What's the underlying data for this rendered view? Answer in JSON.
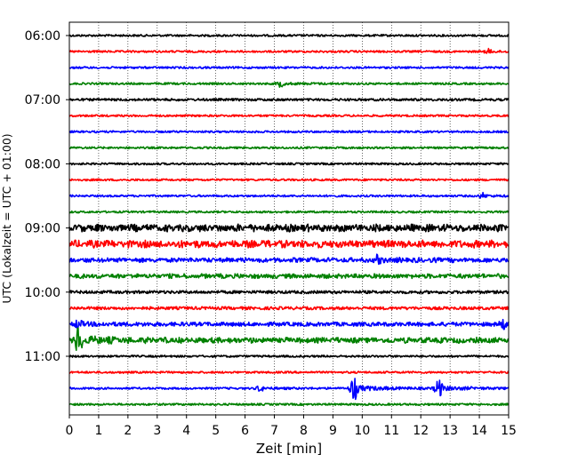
{
  "chart_data": {
    "type": "line",
    "chart_kind": "helicorder",
    "xlabel": "Zeit  [min]",
    "ylabel": "UTC (Lokalzeit = UTC + 01:00)",
    "xlim": [
      0,
      15
    ],
    "x_ticks": [
      0,
      1,
      2,
      3,
      4,
      5,
      6,
      7,
      8,
      9,
      10,
      11,
      12,
      13,
      14,
      15
    ],
    "y_tick_labels": [
      "06:00",
      "07:00",
      "08:00",
      "09:00",
      "10:00",
      "11:00"
    ],
    "x_grid": "dotted vertical at every minute",
    "trace_colors": [
      "#000000",
      "#ff0000",
      "#0000ff",
      "#008000"
    ],
    "traces": [
      {
        "start": "06:00",
        "color": "#000000",
        "amplitude": 1,
        "events": []
      },
      {
        "start": "06:15",
        "color": "#ff0000",
        "amplitude": 1,
        "events": [
          {
            "t": 14.3,
            "amp": 2
          }
        ]
      },
      {
        "start": "06:30",
        "color": "#0000ff",
        "amplitude": 1,
        "events": []
      },
      {
        "start": "06:45",
        "color": "#008000",
        "amplitude": 1,
        "events": [
          {
            "t": 7.2,
            "amp": 3
          }
        ]
      },
      {
        "start": "07:00",
        "color": "#000000",
        "amplitude": 1.2,
        "events": []
      },
      {
        "start": "07:15",
        "color": "#ff0000",
        "amplitude": 1,
        "events": []
      },
      {
        "start": "07:30",
        "color": "#0000ff",
        "amplitude": 1,
        "events": []
      },
      {
        "start": "07:45",
        "color": "#008000",
        "amplitude": 1,
        "events": []
      },
      {
        "start": "08:00",
        "color": "#000000",
        "amplitude": 1,
        "events": []
      },
      {
        "start": "08:15",
        "color": "#ff0000",
        "amplitude": 1,
        "events": []
      },
      {
        "start": "08:30",
        "color": "#0000ff",
        "amplitude": 1,
        "events": [
          {
            "t": 14.1,
            "amp": 2.5
          }
        ]
      },
      {
        "start": "08:45",
        "color": "#008000",
        "amplitude": 1,
        "events": []
      },
      {
        "start": "09:00",
        "color": "#000000",
        "amplitude": 4,
        "events": []
      },
      {
        "start": "09:15",
        "color": "#ff0000",
        "amplitude": 4,
        "events": []
      },
      {
        "start": "09:30",
        "color": "#0000ff",
        "amplitude": 2.5,
        "events": [
          {
            "t": 10.5,
            "amp": 4
          }
        ]
      },
      {
        "start": "09:45",
        "color": "#008000",
        "amplitude": 2.5,
        "events": []
      },
      {
        "start": "10:00",
        "color": "#000000",
        "amplitude": 1.5,
        "events": []
      },
      {
        "start": "10:15",
        "color": "#ff0000",
        "amplitude": 1.5,
        "events": []
      },
      {
        "start": "10:30",
        "color": "#0000ff",
        "amplitude": 2,
        "events": [
          {
            "t": 0.3,
            "amp": 4
          },
          {
            "t": 14.8,
            "amp": 4
          }
        ]
      },
      {
        "start": "10:45",
        "color": "#008000",
        "amplitude": 3,
        "events": [
          {
            "t": 0.3,
            "amp": 14
          }
        ]
      },
      {
        "start": "11:00",
        "color": "#000000",
        "amplitude": 1,
        "events": []
      },
      {
        "start": "11:15",
        "color": "#ff0000",
        "amplitude": 1,
        "events": []
      },
      {
        "start": "11:30",
        "color": "#0000ff",
        "amplitude": 1,
        "events": [
          {
            "t": 6.5,
            "amp": 3
          },
          {
            "t": 9.7,
            "amp": 14
          },
          {
            "t": 12.6,
            "amp": 10
          }
        ]
      },
      {
        "start": "11:45",
        "color": "#008000",
        "amplitude": 1,
        "events": []
      }
    ]
  }
}
